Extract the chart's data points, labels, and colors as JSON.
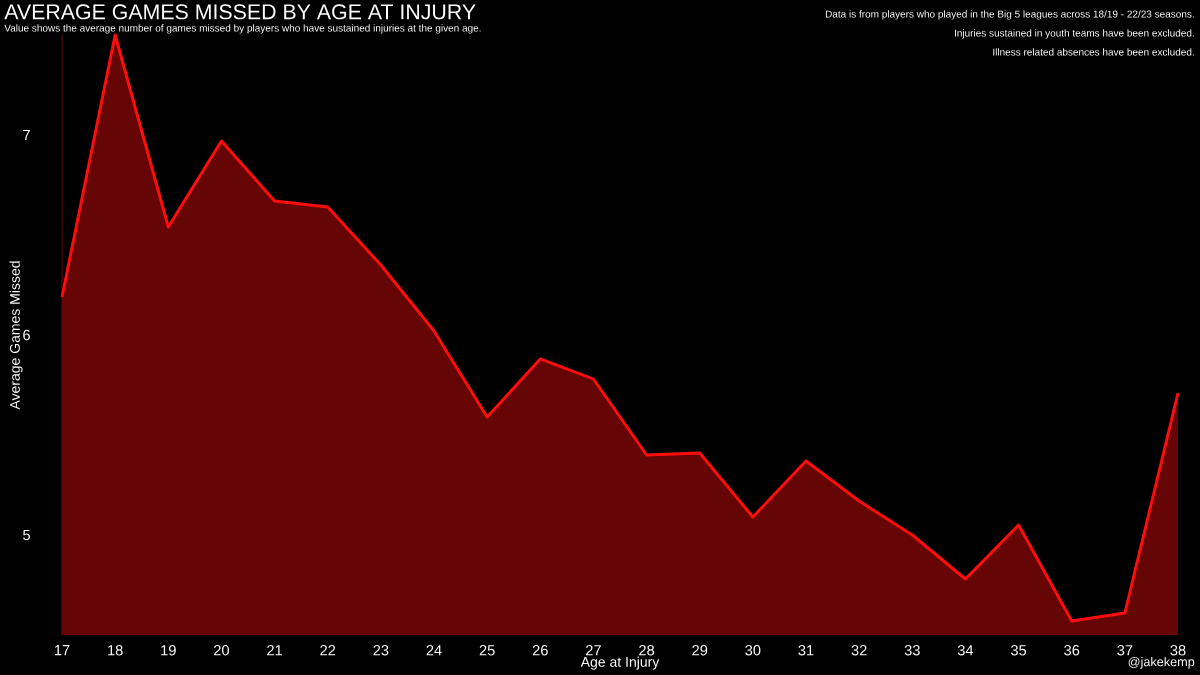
{
  "chart_data": {
    "type": "area",
    "title": "AVERAGE GAMES MISSED BY AGE AT INJURY",
    "subtitle": "Value shows the average number of games missed by players who have sustained injuries at the given age.",
    "xlabel": "Age at Injury",
    "ylabel": "Average Games Missed",
    "annotations": [
      "Data is from players who played in the Big 5 leagues across 18/19 - 22/23 seasons.",
      "Injuries sustained in youth teams have been excluded.",
      "Illness related absences have been excluded.",
      "@jakekemp"
    ],
    "x": [
      17,
      18,
      19,
      20,
      21,
      22,
      23,
      24,
      25,
      26,
      27,
      28,
      29,
      30,
      31,
      32,
      33,
      34,
      35,
      36,
      37,
      38
    ],
    "series": [
      {
        "color": "#ff0d0d",
        "values": [
          6.19,
          7.5,
          6.54,
          6.97,
          6.67,
          6.64,
          6.35,
          6.02,
          5.59,
          5.88,
          5.78,
          5.4,
          5.41,
          5.09,
          5.37,
          5.17,
          5.0,
          4.78,
          5.05,
          4.57,
          4.61,
          5.71
        ]
      }
    ],
    "xlim": [
      17,
      38
    ],
    "xticks": [
      17,
      18,
      19,
      20,
      21,
      22,
      23,
      24,
      25,
      26,
      27,
      28,
      29,
      30,
      31,
      32,
      33,
      34,
      35,
      36,
      37,
      38
    ],
    "ylim": [
      4.5,
      7.5
    ],
    "yticks": [
      5,
      6,
      7
    ]
  }
}
